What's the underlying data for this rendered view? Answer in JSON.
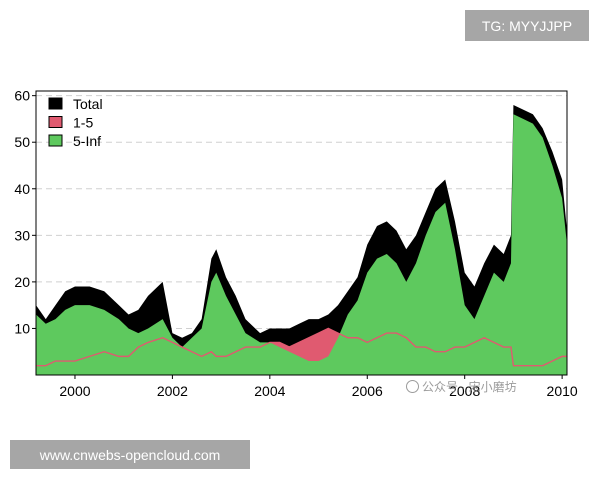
{
  "watermarks": {
    "tg_label": "TG: MYYJJPP",
    "site_url": "www.cnwebs-opencloud.com",
    "overlay_text": "公众号 · 宋小磨坊",
    "overlay_icon": "wechat-icon"
  },
  "colors": {
    "total": "#000000",
    "bucket_1_5": "#e05a70",
    "bucket_5_inf": "#5ec95e",
    "grid": "#d0d0d0"
  },
  "chart_data": {
    "type": "area",
    "title": "",
    "xlabel": "",
    "ylabel": "",
    "xlim": [
      1999.2,
      2010.1
    ],
    "ylim": [
      0,
      61
    ],
    "x_ticks": [
      2000,
      2002,
      2004,
      2006,
      2008,
      2010
    ],
    "x_tick_labels": [
      "2000",
      "2002",
      "2004",
      "2006",
      "2008",
      "2010"
    ],
    "y_ticks": [
      10,
      20,
      30,
      40,
      50,
      60
    ],
    "y_tick_labels": [
      "10",
      "20",
      "30",
      "40",
      "50",
      "60"
    ],
    "grid": "horizontal-dashed",
    "legend_position": "top-left",
    "legend": [
      {
        "label": "Total",
        "color": "#000000"
      },
      {
        "label": "1-5",
        "color": "#e05a70"
      },
      {
        "label": "5-Inf",
        "color": "#5ec95e"
      }
    ],
    "x": [
      1999.2,
      1999.4,
      1999.6,
      1999.8,
      2000.0,
      2000.3,
      2000.6,
      2000.9,
      2001.1,
      2001.3,
      2001.5,
      2001.8,
      2002.0,
      2002.2,
      2002.4,
      2002.6,
      2002.8,
      2002.9,
      2003.1,
      2003.3,
      2003.5,
      2003.8,
      2004.0,
      2004.2,
      2004.4,
      2004.6,
      2004.8,
      2005.0,
      2005.2,
      2005.4,
      2005.6,
      2005.8,
      2006.0,
      2006.2,
      2006.4,
      2006.6,
      2006.8,
      2007.0,
      2007.2,
      2007.4,
      2007.6,
      2007.8,
      2008.0,
      2008.2,
      2008.4,
      2008.6,
      2008.8,
      2008.95,
      2009.0,
      2009.2,
      2009.4,
      2009.6,
      2009.8,
      2010.0,
      2010.1
    ],
    "series": [
      {
        "name": "Total",
        "values": [
          15,
          12,
          15,
          18,
          19,
          19,
          18,
          15,
          13,
          14,
          17,
          20,
          9,
          8,
          9,
          12,
          25,
          27,
          21,
          17,
          12,
          9,
          10,
          10,
          10,
          11,
          12,
          12,
          13,
          15,
          18,
          21,
          28,
          32,
          33,
          31,
          27,
          30,
          35,
          40,
          42,
          33,
          22,
          19,
          24,
          28,
          26,
          30,
          58,
          57,
          56,
          53,
          48,
          42,
          31
        ]
      },
      {
        "name": "1-5",
        "values": [
          2,
          2,
          3,
          3,
          3,
          4,
          5,
          4,
          4,
          6,
          7,
          8,
          7,
          6,
          5,
          4,
          5,
          4,
          4,
          5,
          6,
          6,
          7,
          7,
          6,
          7,
          8,
          9,
          10,
          9,
          8,
          8,
          7,
          8,
          9,
          9,
          8,
          6,
          6,
          5,
          5,
          6,
          6,
          7,
          8,
          7,
          6,
          6,
          2,
          2,
          2,
          2,
          3,
          4,
          4
        ]
      },
      {
        "name": "5-Inf",
        "values": [
          13,
          11,
          12,
          14,
          15,
          15,
          14,
          12,
          10,
          9,
          10,
          12,
          8,
          6,
          8,
          10,
          20,
          22,
          17,
          13,
          9,
          7,
          7,
          6,
          5,
          4,
          3,
          3,
          4,
          8,
          13,
          16,
          22,
          25,
          26,
          24,
          20,
          24,
          30,
          35,
          37,
          27,
          15,
          12,
          17,
          22,
          20,
          24,
          56,
          55,
          54,
          51,
          45,
          38,
          28
        ]
      }
    ]
  }
}
